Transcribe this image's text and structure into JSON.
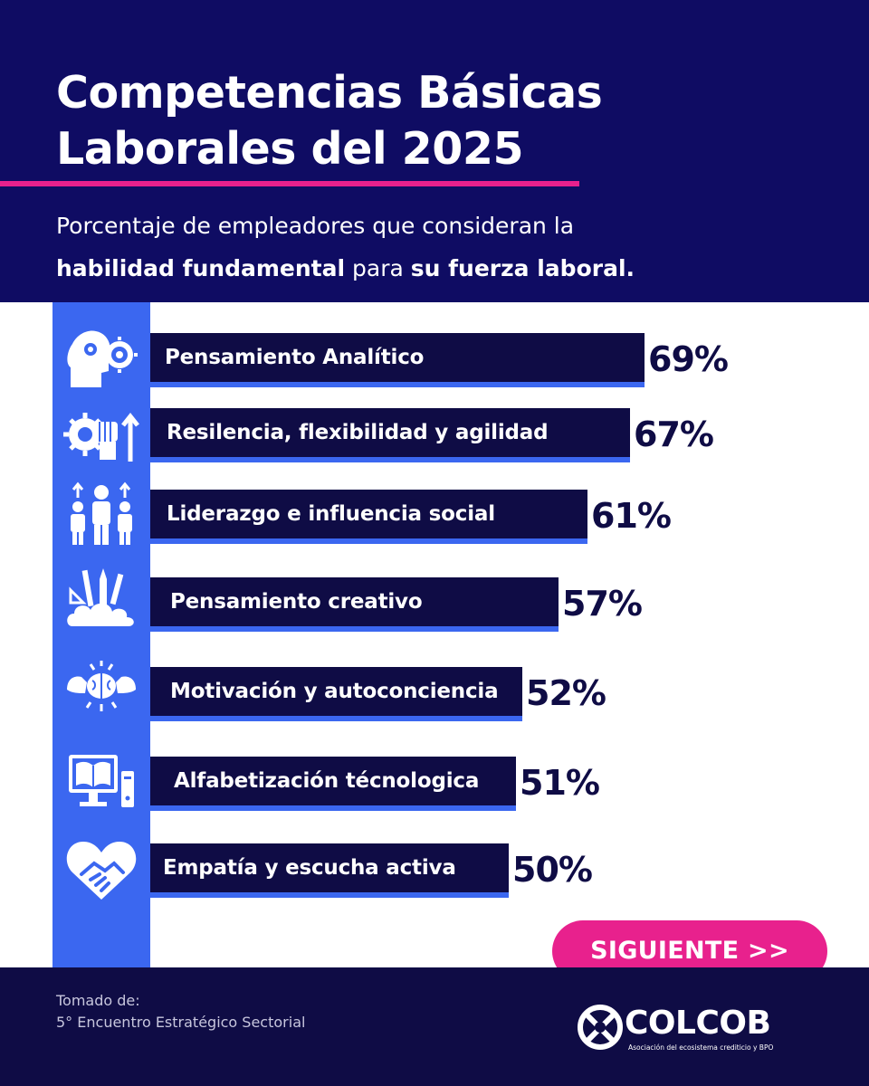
{
  "header": {
    "title_line1": "Competencias Básicas",
    "title_line2": "Laborales del 2025",
    "subtitle_line1": "Porcentaje de empleadores que  consideran la",
    "subtitle_bold1": "habilidad fundamental",
    "subtitle_mid": " para ",
    "subtitle_bold2": "su fuerza laboral."
  },
  "chart_data": {
    "type": "bar",
    "orientation": "horizontal",
    "title": "Competencias Básicas Laborales del 2025",
    "subtitle": "Porcentaje de empleadores que  consideran la habilidad fundamental para su fuerza laboral.",
    "xlabel": "",
    "ylabel": "",
    "grid": false,
    "value_suffix": "%",
    "categories": [
      "Pensamiento Analítico",
      "Resilencia, flexibilidad y agilidad",
      "Liderazgo e influencia social",
      "Pensamiento creativo",
      "Motivación y autoconciencia",
      "Alfabetización técnologica",
      "Empatía y escucha activa"
    ],
    "values": [
      69,
      67,
      61,
      57,
      52,
      51,
      50
    ],
    "value_labels": [
      "69%",
      "67%",
      "61%",
      "57%",
      "52%",
      "51%",
      "50%"
    ],
    "icons": [
      "head-gears-icon",
      "gear-fist-arrow-icon",
      "team-growth-icon",
      "creative-tools-cloud-icon",
      "strong-brain-icon",
      "computer-book-icon",
      "heart-handshake-icon"
    ],
    "colors": {
      "bar": "#0f0c45",
      "bar_shadow": "#3b67f0",
      "label": "#ffffff",
      "value": "#0f0c45"
    }
  },
  "cta": {
    "label": "SIGUIENTE >>"
  },
  "footer": {
    "source_label": "Tomado de:",
    "source_name": "5° Encuentro Estratégico Sectorial",
    "brand": "COLCOB",
    "brand_tagline": "Asociación del ecosistema crediticio y BPO"
  },
  "colors": {
    "navy": "#0f0c63",
    "dark_navy": "#0f0c45",
    "blue": "#3b67f0",
    "magenta": "#e8218d"
  }
}
